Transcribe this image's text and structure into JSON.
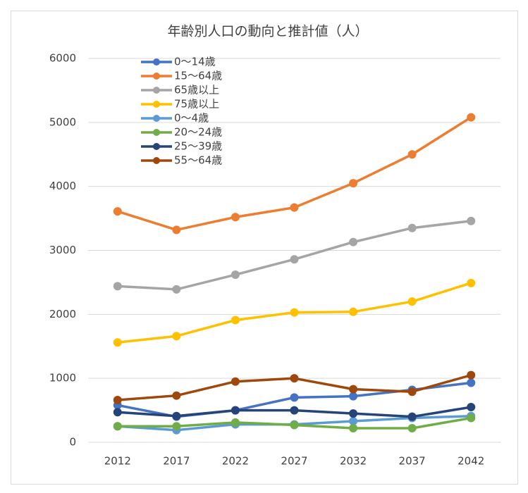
{
  "chart_data": {
    "type": "line",
    "title": "年齢別人口の動向と推計値（人）",
    "categories": [
      "2012",
      "2017",
      "2022",
      "2027",
      "2032",
      "2037",
      "2042"
    ],
    "series": [
      {
        "name": "0～14歳",
        "color": "#4472c4",
        "values": [
          580,
          400,
          500,
          700,
          720,
          820,
          930
        ]
      },
      {
        "name": "15～64歳",
        "color": "#ed7d31",
        "values": [
          3610,
          3320,
          3520,
          3670,
          4050,
          4500,
          5080
        ]
      },
      {
        "name": "65歳以上",
        "color": "#a5a5a5",
        "values": [
          2440,
          2390,
          2620,
          2860,
          3130,
          3350,
          3460
        ]
      },
      {
        "name": "75歳以上",
        "color": "#ffc000",
        "values": [
          1560,
          1660,
          1910,
          2030,
          2040,
          2200,
          2490
        ]
      },
      {
        "name": "0～4歳",
        "color": "#5b9bd5",
        "values": [
          250,
          190,
          280,
          280,
          330,
          380,
          410
        ]
      },
      {
        "name": "20～24歳",
        "color": "#70ad47",
        "values": [
          250,
          250,
          310,
          270,
          220,
          220,
          380
        ]
      },
      {
        "name": "25～39歳",
        "color": "#264478",
        "values": [
          470,
          410,
          500,
          500,
          450,
          400,
          550
        ]
      },
      {
        "name": "55～64歳",
        "color": "#9e480e",
        "values": [
          660,
          730,
          950,
          1000,
          830,
          790,
          1050
        ]
      }
    ],
    "ylim": [
      0,
      6000
    ],
    "yticks": [
      0,
      1000,
      2000,
      3000,
      4000,
      5000,
      6000
    ],
    "grid": true
  }
}
